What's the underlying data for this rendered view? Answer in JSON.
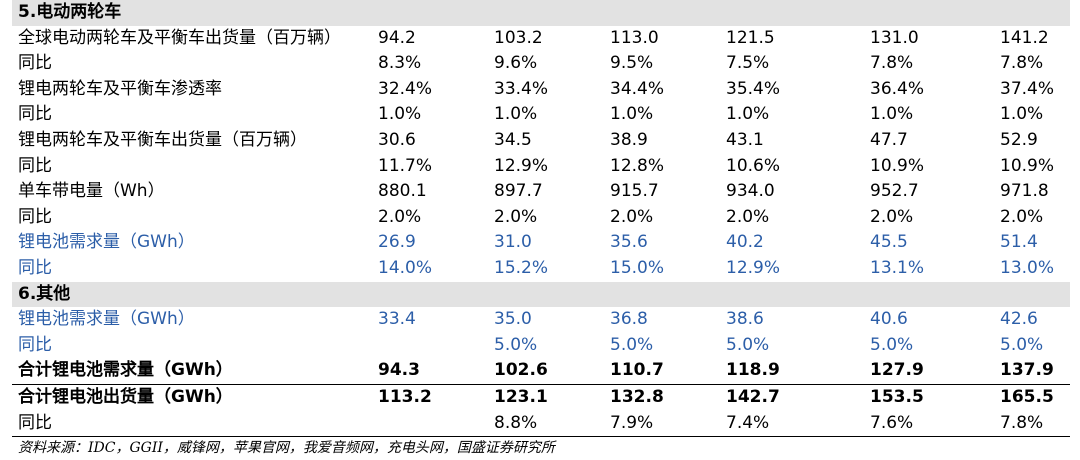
{
  "rows": [
    {
      "type": "section",
      "label": "5.电动两轮车",
      "values": []
    },
    {
      "type": "normal",
      "label": "全球电动两轮车及平衡车出货量（百万辆）",
      "values": [
        "94.2",
        "103.2",
        "113.0",
        "121.5",
        "131.0",
        "141.2"
      ]
    },
    {
      "type": "normal",
      "label": "同比",
      "values": [
        "8.3%",
        "9.6%",
        "9.5%",
        "7.5%",
        "7.8%",
        "7.8%"
      ]
    },
    {
      "type": "normal",
      "label": "锂电两轮车及平衡车渗透率",
      "values": [
        "32.4%",
        "33.4%",
        "34.4%",
        "35.4%",
        "36.4%",
        "37.4%"
      ]
    },
    {
      "type": "normal",
      "label": "同比",
      "values": [
        "1.0%",
        "1.0%",
        "1.0%",
        "1.0%",
        "1.0%",
        "1.0%"
      ]
    },
    {
      "type": "normal",
      "label": "锂电两轮车及平衡车出货量（百万辆）",
      "values": [
        "30.6",
        "34.5",
        "38.9",
        "43.1",
        "47.7",
        "52.9"
      ]
    },
    {
      "type": "normal",
      "label": "同比",
      "values": [
        "11.7%",
        "12.9%",
        "12.8%",
        "10.6%",
        "10.9%",
        "10.9%"
      ]
    },
    {
      "type": "normal",
      "label": "单车带电量（Wh）",
      "values": [
        "880.1",
        "897.7",
        "915.7",
        "934.0",
        "952.7",
        "971.8"
      ]
    },
    {
      "type": "normal",
      "label": "同比",
      "values": [
        "2.0%",
        "2.0%",
        "2.0%",
        "2.0%",
        "2.0%",
        "2.0%"
      ]
    },
    {
      "type": "blue",
      "label": "锂电池需求量（GWh）",
      "values": [
        "26.9",
        "31.0",
        "35.6",
        "40.2",
        "45.5",
        "51.4"
      ]
    },
    {
      "type": "blue",
      "label": "同比",
      "values": [
        "14.0%",
        "15.2%",
        "15.0%",
        "12.9%",
        "13.1%",
        "13.0%"
      ]
    },
    {
      "type": "section",
      "label": "6.其他",
      "values": []
    },
    {
      "type": "blue",
      "label": "锂电池需求量（GWh）",
      "values": [
        "33.4",
        "35.0",
        "36.8",
        "38.6",
        "40.6",
        "42.6"
      ]
    },
    {
      "type": "blue",
      "label": "同比",
      "values": [
        "",
        "5.0%",
        "5.0%",
        "5.0%",
        "5.0%",
        "5.0%"
      ]
    },
    {
      "type": "bold",
      "label": "合计锂电池需求量（GWh）",
      "values": [
        "94.3",
        "102.6",
        "110.7",
        "118.9",
        "127.9",
        "137.9"
      ]
    },
    {
      "type": "bold",
      "label": "合计锂电池出货量（GWh）",
      "values": [
        "113.2",
        "123.1",
        "132.8",
        "142.7",
        "153.5",
        "165.5"
      ]
    },
    {
      "type": "normal",
      "label": "同比",
      "values": [
        "",
        "8.8%",
        "7.9%",
        "7.4%",
        "7.6%",
        "7.8%"
      ]
    }
  ],
  "source": "资料来源：IDC，GGII，威锋网，苹果官网，我爱音频网，充电头网，国盛证券研究所"
}
